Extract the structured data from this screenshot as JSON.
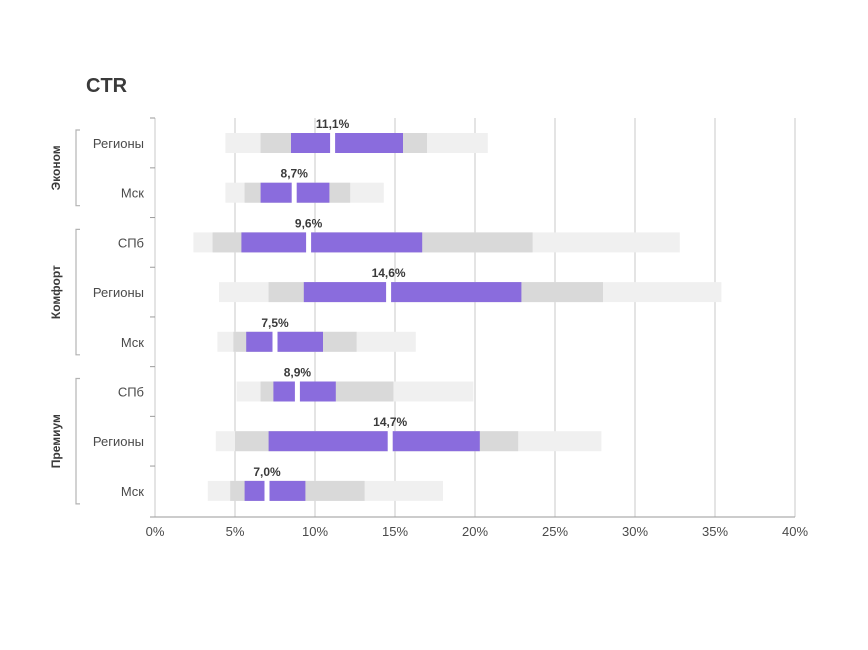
{
  "chart_data": {
    "type": "box",
    "title": "CTR",
    "xlabel": "",
    "ylabel": "",
    "xlim": [
      0,
      40
    ],
    "x_ticks": [
      "0%",
      "5%",
      "10%",
      "15%",
      "20%",
      "25%",
      "30%",
      "35%",
      "40%"
    ],
    "grid": "vertical",
    "colors": {
      "outer": "#f0f0f0",
      "inner": "#d9d9d9",
      "core": "#8a6cdd",
      "gridline": "#c8c8c8",
      "bracket": "#b3b3b3"
    },
    "groups": [
      {
        "name": "Эконом",
        "rows": [
          0,
          1
        ]
      },
      {
        "name": "Комфорт",
        "rows": [
          2,
          3,
          4
        ]
      },
      {
        "name": "Премиум",
        "rows": [
          5,
          6,
          7
        ]
      }
    ],
    "rows": [
      {
        "category": "Регионы",
        "outer": [
          4.4,
          20.8
        ],
        "inner": [
          6.6,
          17.0
        ],
        "core": [
          8.5,
          15.5
        ],
        "median": 11.1,
        "label": "11,1%"
      },
      {
        "category": "Мск",
        "outer": [
          4.4,
          14.3
        ],
        "inner": [
          5.6,
          12.2
        ],
        "core": [
          6.6,
          10.9
        ],
        "median": 8.7,
        "label": "8,7%"
      },
      {
        "category": "СПб",
        "outer": [
          2.4,
          32.8
        ],
        "inner": [
          3.6,
          23.6
        ],
        "core": [
          5.4,
          16.7
        ],
        "median": 9.6,
        "label": "9,6%"
      },
      {
        "category": "Регионы",
        "outer": [
          4.0,
          35.4
        ],
        "inner": [
          7.1,
          28.0
        ],
        "core": [
          9.3,
          22.9
        ],
        "median": 14.6,
        "label": "14,6%"
      },
      {
        "category": "Мск",
        "outer": [
          3.9,
          16.3
        ],
        "inner": [
          4.9,
          12.6
        ],
        "core": [
          5.7,
          10.5
        ],
        "median": 7.5,
        "label": "7,5%"
      },
      {
        "category": "СПб",
        "outer": [
          5.1,
          19.9
        ],
        "inner": [
          6.6,
          14.9
        ],
        "core": [
          7.4,
          11.3
        ],
        "median": 8.9,
        "label": "8,9%"
      },
      {
        "category": "Регионы",
        "outer": [
          3.8,
          27.9
        ],
        "inner": [
          5.0,
          22.7
        ],
        "core": [
          7.1,
          20.3
        ],
        "median": 14.7,
        "label": "14,7%"
      },
      {
        "category": "Мск",
        "outer": [
          3.3,
          18.0
        ],
        "inner": [
          4.7,
          13.1
        ],
        "core": [
          5.6,
          9.4
        ],
        "median": 7.0,
        "label": "7,0%"
      }
    ]
  }
}
